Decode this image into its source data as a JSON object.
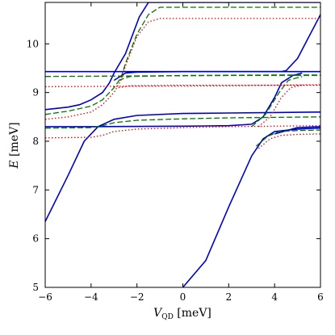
{
  "chart_data": {
    "type": "line",
    "xlabel": {
      "main": "V",
      "sub": "QD",
      "unit": " [meV]"
    },
    "ylabel": {
      "main": "E",
      "unit": " [meV]"
    },
    "xlim": [
      -6,
      6
    ],
    "ylim": [
      5,
      10.85
    ],
    "xticks": [
      -6,
      -4,
      -2,
      0,
      2,
      4,
      6
    ],
    "yticks": [
      5,
      6,
      7,
      8,
      9,
      10
    ],
    "grid": false,
    "colors": {
      "blue": "#0000cc",
      "green": "#007700",
      "red": "#dd0000"
    },
    "series": [
      {
        "color": "blue",
        "style": "solid",
        "points": [
          [
            -6,
            6.35
          ],
          [
            -5,
            7.3
          ],
          [
            -4.3,
            8.0
          ],
          [
            -3.7,
            8.3
          ],
          [
            -3,
            8.45
          ],
          [
            -2,
            8.53
          ],
          [
            0,
            8.57
          ],
          [
            2,
            8.58
          ],
          [
            4,
            8.59
          ],
          [
            6,
            8.6
          ]
        ]
      },
      {
        "color": "blue",
        "style": "solid",
        "points": [
          [
            -6,
            8.65
          ],
          [
            -5,
            8.7
          ],
          [
            -4.5,
            8.75
          ],
          [
            -4,
            8.85
          ],
          [
            -3.5,
            9.0
          ],
          [
            -3.2,
            9.2
          ],
          [
            -3,
            9.4
          ],
          [
            -2.5,
            9.8
          ],
          [
            -1.9,
            10.55
          ],
          [
            -1.5,
            10.85
          ]
        ]
      },
      {
        "color": "blue",
        "style": "solid",
        "points": [
          [
            -6,
            9.43
          ],
          [
            -3,
            9.43
          ],
          [
            0,
            9.43
          ],
          [
            3,
            9.43
          ],
          [
            6,
            9.43
          ]
        ]
      },
      {
        "color": "blue",
        "style": "solid",
        "points": [
          [
            -3,
            9.25
          ],
          [
            -2.5,
            9.4
          ],
          [
            -2,
            9.42
          ],
          [
            0,
            9.43
          ],
          [
            3,
            9.43
          ],
          [
            4.3,
            9.43
          ],
          [
            4.5,
            9.45
          ],
          [
            5,
            9.7
          ],
          [
            6,
            10.6
          ]
        ]
      },
      {
        "color": "blue",
        "style": "solid",
        "points": [
          [
            -6,
            8.3
          ],
          [
            -4,
            8.3
          ],
          [
            0,
            8.31
          ],
          [
            2,
            8.32
          ],
          [
            3,
            8.35
          ],
          [
            3.5,
            8.5
          ],
          [
            4,
            8.9
          ],
          [
            4.3,
            9.2
          ],
          [
            4.8,
            9.35
          ],
          [
            5.2,
            9.4
          ]
        ]
      },
      {
        "color": "blue",
        "style": "solid",
        "points": [
          [
            0,
            5
          ],
          [
            1,
            5.55
          ],
          [
            2,
            6.65
          ],
          [
            3,
            7.7
          ],
          [
            3.5,
            8.05
          ],
          [
            4,
            8.2
          ],
          [
            5,
            8.25
          ],
          [
            6,
            8.27
          ]
        ]
      },
      {
        "color": "blue",
        "style": "solid",
        "points": [
          [
            4,
            8.15
          ],
          [
            5,
            8.28
          ],
          [
            6,
            8.3
          ]
        ]
      },
      {
        "color": "blue",
        "style": "solid",
        "points": [
          [
            -1.5,
            10.85
          ],
          [
            6,
            10.85
          ]
        ]
      },
      {
        "color": "green",
        "style": "dashed",
        "points": [
          [
            -6,
            8.27
          ],
          [
            -4,
            8.28
          ],
          [
            -3.5,
            8.32
          ],
          [
            -3,
            8.38
          ],
          [
            -2,
            8.43
          ],
          [
            0,
            8.46
          ],
          [
            2,
            8.48
          ],
          [
            4,
            8.49
          ],
          [
            6,
            8.5
          ]
        ]
      },
      {
        "color": "green",
        "style": "dashed",
        "points": [
          [
            -6,
            8.55
          ],
          [
            -5,
            8.62
          ],
          [
            -4,
            8.72
          ],
          [
            -3.5,
            8.85
          ],
          [
            -3,
            9.1
          ],
          [
            -2.7,
            9.3
          ],
          [
            -2.5,
            9.6
          ],
          [
            -2,
            10.2
          ],
          [
            -1.5,
            10.6
          ],
          [
            -1,
            10.75
          ],
          [
            6,
            10.75
          ]
        ]
      },
      {
        "color": "green",
        "style": "dashed",
        "points": [
          [
            -6,
            9.33
          ],
          [
            -2,
            9.34
          ],
          [
            2,
            9.35
          ],
          [
            4,
            9.35
          ],
          [
            6,
            9.35
          ]
        ]
      },
      {
        "color": "green",
        "style": "dashed",
        "points": [
          [
            -2.8,
            9.25
          ],
          [
            -2.3,
            9.33
          ],
          [
            0,
            9.35
          ],
          [
            4,
            9.36
          ],
          [
            6,
            9.36
          ]
        ]
      },
      {
        "color": "green",
        "style": "dashed",
        "points": [
          [
            3,
            8.3
          ],
          [
            3.6,
            8.55
          ],
          [
            4.2,
            9.0
          ],
          [
            4.6,
            9.25
          ],
          [
            5.2,
            9.33
          ]
        ]
      },
      {
        "color": "green",
        "style": "dashed",
        "points": [
          [
            3.2,
            7.9
          ],
          [
            3.7,
            8.1
          ],
          [
            4.2,
            8.2
          ],
          [
            5,
            8.22
          ],
          [
            6,
            8.23
          ]
        ]
      },
      {
        "color": "red",
        "style": "dotted",
        "points": [
          [
            -6,
            8.07
          ],
          [
            -4,
            8.08
          ],
          [
            -3.5,
            8.12
          ],
          [
            -3,
            8.2
          ],
          [
            -2,
            8.25
          ],
          [
            0,
            8.28
          ],
          [
            2,
            8.3
          ],
          [
            4,
            8.31
          ],
          [
            6,
            8.32
          ]
        ]
      },
      {
        "color": "red",
        "style": "dotted",
        "points": [
          [
            -6,
            8.45
          ],
          [
            -5,
            8.5
          ],
          [
            -4,
            8.6
          ],
          [
            -3.5,
            8.75
          ],
          [
            -3,
            9.0
          ],
          [
            -2.7,
            9.25
          ],
          [
            -2.5,
            9.55
          ],
          [
            -2,
            10.15
          ],
          [
            -1.5,
            10.45
          ],
          [
            -1,
            10.52
          ],
          [
            6,
            10.52
          ]
        ]
      },
      {
        "color": "red",
        "style": "dotted",
        "points": [
          [
            -6,
            9.12
          ],
          [
            -2,
            9.13
          ],
          [
            2,
            9.14
          ],
          [
            4,
            9.15
          ],
          [
            6,
            9.15
          ]
        ]
      },
      {
        "color": "red",
        "style": "dotted",
        "points": [
          [
            -2.8,
            9.1
          ],
          [
            -2.3,
            9.14
          ],
          [
            0,
            9.15
          ],
          [
            4,
            9.15
          ],
          [
            6,
            9.16
          ]
        ]
      },
      {
        "color": "red",
        "style": "dotted",
        "points": [
          [
            3.3,
            8.3
          ],
          [
            3.8,
            8.5
          ],
          [
            4.3,
            8.9
          ],
          [
            4.7,
            9.1
          ],
          [
            5.2,
            9.15
          ]
        ]
      },
      {
        "color": "red",
        "style": "dotted",
        "points": [
          [
            3.3,
            7.85
          ],
          [
            3.8,
            8.05
          ],
          [
            4.3,
            8.12
          ],
          [
            5,
            8.14
          ],
          [
            6,
            8.15
          ]
        ]
      }
    ]
  }
}
